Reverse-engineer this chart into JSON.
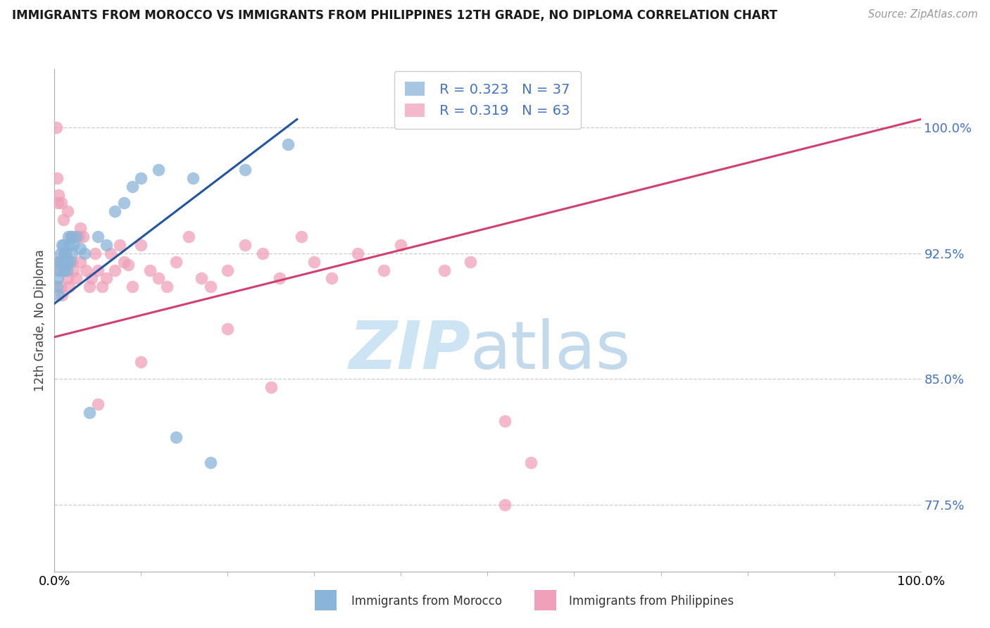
{
  "title": "IMMIGRANTS FROM MOROCCO VS IMMIGRANTS FROM PHILIPPINES 12TH GRADE, NO DIPLOMA CORRELATION CHART",
  "source": "Source: ZipAtlas.com",
  "ylabel": "12th Grade, No Diploma",
  "y_ticks": [
    77.5,
    85.0,
    92.5,
    100.0
  ],
  "y_tick_labels": [
    "77.5%",
    "85.0%",
    "92.5%",
    "100.0%"
  ],
  "x_range": [
    0,
    100
  ],
  "y_range": [
    73.5,
    103.5
  ],
  "legend_morocco_R": "0.323",
  "legend_morocco_N": "37",
  "legend_philippines_R": "0.319",
  "legend_philippines_N": "63",
  "legend_text_color": "#4472c4",
  "morocco_color": "#8ab4d8",
  "philippines_color": "#f0a0b8",
  "trend_morocco_color": "#2255a0",
  "trend_philippines_color": "#d04070",
  "morocco_x": [
    0.3,
    0.4,
    0.5,
    0.5,
    0.6,
    0.7,
    0.8,
    0.9,
    1.0,
    1.0,
    1.1,
    1.2,
    1.3,
    1.4,
    1.5,
    1.6,
    1.7,
    1.8,
    1.9,
    2.0,
    2.2,
    2.5,
    3.0,
    3.5,
    4.0,
    5.0,
    6.0,
    7.0,
    8.0,
    9.0,
    10.0,
    12.0,
    14.0,
    16.0,
    18.0,
    22.0,
    27.0
  ],
  "morocco_y": [
    90.5,
    91.0,
    90.0,
    92.0,
    91.5,
    92.5,
    92.0,
    93.0,
    91.5,
    93.0,
    92.5,
    91.8,
    92.5,
    91.5,
    92.0,
    93.5,
    93.0,
    92.0,
    93.5,
    92.5,
    93.0,
    93.5,
    92.8,
    92.5,
    83.0,
    93.5,
    93.0,
    95.0,
    95.5,
    96.5,
    97.0,
    97.5,
    81.5,
    97.0,
    80.0,
    97.5,
    99.0
  ],
  "philippines_x": [
    0.3,
    0.5,
    0.7,
    0.9,
    1.1,
    1.3,
    1.5,
    1.7,
    2.0,
    2.2,
    2.5,
    2.8,
    3.0,
    3.3,
    3.6,
    4.0,
    4.3,
    4.7,
    5.0,
    5.5,
    6.0,
    6.5,
    7.0,
    7.5,
    8.0,
    8.5,
    9.0,
    10.0,
    11.0,
    12.0,
    13.0,
    14.0,
    15.5,
    17.0,
    18.0,
    20.0,
    22.0,
    24.0,
    26.0,
    28.5,
    30.0,
    32.0,
    35.0,
    38.0,
    40.0,
    45.0,
    48.0,
    52.0,
    55.0,
    52.0,
    25.0,
    20.0,
    10.0,
    5.0,
    3.0,
    2.0,
    1.5,
    1.0,
    0.8,
    0.5,
    0.4,
    0.3,
    0.2
  ],
  "philippines_y": [
    92.0,
    91.5,
    90.5,
    90.0,
    91.5,
    92.5,
    91.0,
    90.5,
    92.0,
    91.5,
    91.0,
    93.5,
    92.0,
    93.5,
    91.5,
    90.5,
    91.0,
    92.5,
    91.5,
    90.5,
    91.0,
    92.5,
    91.5,
    93.0,
    92.0,
    91.8,
    90.5,
    93.0,
    91.5,
    91.0,
    90.5,
    92.0,
    93.5,
    91.0,
    90.5,
    91.5,
    93.0,
    92.5,
    91.0,
    93.5,
    92.0,
    91.0,
    92.5,
    91.5,
    93.0,
    91.5,
    92.0,
    77.5,
    80.0,
    82.5,
    84.5,
    88.0,
    86.0,
    83.5,
    94.0,
    93.5,
    95.0,
    94.5,
    95.5,
    96.0,
    95.5,
    97.0,
    100.0
  ],
  "bottom_legend_labels": [
    "Immigrants from Morocco",
    "Immigrants from Philippines"
  ]
}
